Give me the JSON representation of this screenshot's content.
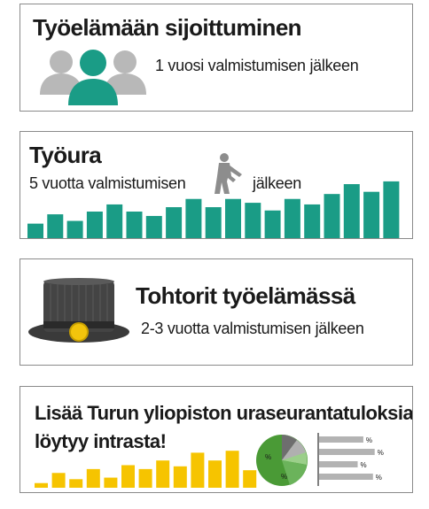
{
  "colors": {
    "teal": "#1a9c86",
    "gray": "#9a9a9a",
    "yellow": "#f6c400",
    "green": "#3f9a3a",
    "dark": "#3c3c3c"
  },
  "cards": [
    {
      "title": "Työelämään sijoittuminen",
      "subtitle": "1 vuosi valmistumisen jälkeen",
      "icon": "people-group-icon"
    },
    {
      "title": "Työura",
      "subtitle_part1": "5 vuotta valmistumisen",
      "subtitle_part2": "jälkeen",
      "icon": "person-climbing-stairs-icon",
      "bar_levels": [
        0.28,
        0.45,
        0.33,
        0.5,
        0.63,
        0.5,
        0.42,
        0.58,
        0.73,
        0.58,
        0.73,
        0.66,
        0.52,
        0.73,
        0.63,
        0.82,
        1.0,
        0.86,
        1.05
      ]
    },
    {
      "title": "Tohtorit työelämässä",
      "subtitle": "2-3 vuotta valmistumisen jälkeen",
      "icon": "doctoral-hat-icon"
    },
    {
      "title_line1": "Lisää Turun yliopiston uraseurantatuloksia",
      "title_line2": "löytyy intrasta!",
      "bar_levels": [
        0.12,
        0.38,
        0.22,
        0.48,
        0.26,
        0.58,
        0.48,
        0.7,
        0.55,
        0.9,
        0.7,
        0.95,
        0.45
      ],
      "pie_labels": [
        "%",
        "%"
      ],
      "hbar_labels": [
        "%",
        "%",
        "%",
        "%"
      ],
      "hbar_levels": [
        0.78,
        0.98,
        0.68,
        0.95
      ]
    }
  ]
}
